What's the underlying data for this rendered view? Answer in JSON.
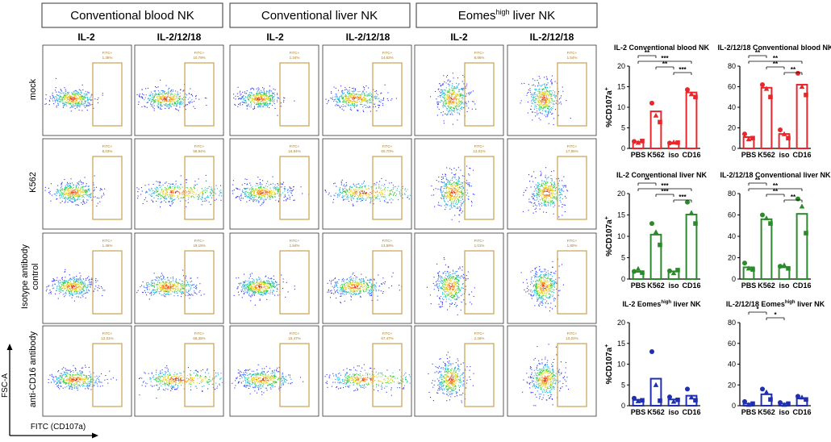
{
  "figure": {
    "column_groups": [
      {
        "label": "Conventional blood NK"
      },
      {
        "label": "Conventional liver NK"
      },
      {
        "label_main": "Eomes",
        "label_sup": "high",
        "label_tail": " liver NK"
      }
    ],
    "column_labels": [
      "IL-2",
      "IL-2/12/18",
      "IL-2",
      "IL-2/12/18",
      "IL-2",
      "IL-2/12/18"
    ],
    "row_labels": [
      [
        "mock"
      ],
      [
        "K562"
      ],
      [
        "Isotype antibody",
        "control"
      ],
      [
        "anti-CD16 antibody"
      ]
    ],
    "gate_name": "FITC+",
    "gate_percentages": [
      [
        "1,36%",
        "10,79%",
        "1,34%",
        "14,62%",
        "8,86%",
        "1,54%"
      ],
      [
        "8,03%",
        "58,94%",
        "16,94%",
        "60,70%",
        "13,01%",
        "17,85%"
      ],
      [
        "1,46%",
        "18,15%",
        "1,84%",
        "13,59%",
        "1,01%",
        "1,80%"
      ],
      [
        "12,01%",
        "68,35%",
        "15,47%",
        "67,47%",
        "2,26%",
        "10,02%"
      ]
    ],
    "y_axis_label": "FSC-A",
    "x_axis_label": "FITC (CD107a)"
  },
  "chart_data": [
    {
      "type": "bar",
      "title": "IL-2 Conventional blood NK",
      "color": "#e8262b",
      "categories": [
        "PBS",
        "K562",
        "iso",
        "CD16"
      ],
      "values": [
        1.6,
        9.0,
        1.4,
        13.6
      ],
      "points": [
        [
          1.7,
          1.4,
          1.8
        ],
        [
          11.0,
          8.0,
          6.4
        ],
        [
          1.3,
          1.5,
          1.4
        ],
        [
          14.3,
          13.2,
          12.5
        ]
      ],
      "ylabel": "%CD107a+",
      "ylim": [
        0,
        20
      ],
      "yticks": [
        0,
        5,
        10,
        15,
        20
      ],
      "significance": [
        {
          "from": "PBS",
          "to": "K562",
          "label": "**"
        },
        {
          "from": "PBS",
          "to": "CD16",
          "label": "***"
        },
        {
          "from": "K562",
          "to": "iso",
          "label": "**"
        },
        {
          "from": "iso",
          "to": "CD16",
          "label": "***"
        }
      ]
    },
    {
      "type": "bar",
      "title": "IL-2/12/18 Conventional blood NK",
      "color": "#e8262b",
      "categories": [
        "PBS",
        "K562",
        "iso",
        "CD16"
      ],
      "values": [
        11,
        59,
        14,
        62
      ],
      "points": [
        [
          14,
          9,
          10
        ],
        [
          62,
          58,
          50
        ],
        [
          18,
          14,
          10
        ],
        [
          73,
          60,
          52
        ]
      ],
      "ylabel": "",
      "ylim": [
        0,
        80
      ],
      "yticks": [
        0,
        20,
        40,
        60,
        80
      ],
      "significance": [
        {
          "from": "PBS",
          "to": "K562",
          "label": "**"
        },
        {
          "from": "PBS",
          "to": "CD16",
          "label": "**"
        },
        {
          "from": "K562",
          "to": "iso",
          "label": "**"
        },
        {
          "from": "iso",
          "to": "CD16",
          "label": "**"
        }
      ]
    },
    {
      "type": "bar",
      "title": "IL-2 Conventional liver NK",
      "color": "#2b8a2b",
      "categories": [
        "PBS",
        "K562",
        "iso",
        "CD16"
      ],
      "values": [
        1.7,
        10.4,
        1.8,
        15.1
      ],
      "points": [
        [
          1.8,
          2.4,
          1.5
        ],
        [
          13.0,
          11.0,
          8.0
        ],
        [
          1.9,
          1.4,
          2.1
        ],
        [
          18.0,
          15.5,
          13.0
        ]
      ],
      "ylabel": "%CD107a+",
      "ylim": [
        0,
        20
      ],
      "yticks": [
        0,
        5,
        10,
        15,
        20
      ],
      "significance": [
        {
          "from": "PBS",
          "to": "K562",
          "label": "**"
        },
        {
          "from": "PBS",
          "to": "CD16",
          "label": "***"
        },
        {
          "from": "K562",
          "to": "iso",
          "label": "***"
        },
        {
          "from": "iso",
          "to": "CD16",
          "label": "***"
        }
      ]
    },
    {
      "type": "bar",
      "title": "IL-2/12/18 Conventional liver NK",
      "color": "#2b8a2b",
      "categories": [
        "PBS",
        "K562",
        "iso",
        "CD16"
      ],
      "values": [
        11,
        56,
        11,
        61
      ],
      "points": [
        [
          15,
          10,
          9
        ],
        [
          60,
          57,
          52
        ],
        [
          12,
          13,
          10
        ],
        [
          75,
          68,
          43
        ]
      ],
      "ylabel": "",
      "ylim": [
        0,
        80
      ],
      "yticks": [
        0,
        20,
        40,
        60,
        80
      ],
      "significance": [
        {
          "from": "PBS",
          "to": "K562",
          "label": "**"
        },
        {
          "from": "PBS",
          "to": "CD16",
          "label": "**"
        },
        {
          "from": "K562",
          "to": "iso",
          "label": "**"
        },
        {
          "from": "iso",
          "to": "CD16",
          "label": "**"
        }
      ]
    },
    {
      "type": "bar",
      "title_main": "IL-2 Eomes",
      "title_sup": "high",
      "title_tail": " liver NK",
      "color": "#1f2fb0",
      "categories": [
        "PBS",
        "K562",
        "iso",
        "CD16"
      ],
      "values": [
        1.4,
        6.5,
        1.5,
        2.4
      ],
      "points": [
        [
          1.8,
          1.1,
          1.3
        ],
        [
          13.0,
          5.0,
          1.2
        ],
        [
          2.1,
          1.0,
          1.4
        ],
        [
          4.0,
          2.0,
          1.3
        ]
      ],
      "ylabel": "%CD107a+",
      "ylim": [
        0,
        20
      ],
      "yticks": [
        0,
        5,
        10,
        15,
        20
      ],
      "significance": []
    },
    {
      "type": "bar",
      "title_main": "IL-2/12/18 Eomes",
      "title_sup": "high",
      "title_tail": " liver NK",
      "color": "#1f2fb0",
      "categories": [
        "PBS",
        "K562",
        "iso",
        "CD16"
      ],
      "values": [
        2,
        11,
        2,
        7
      ],
      "points": [
        [
          4,
          1,
          2
        ],
        [
          16,
          13,
          6
        ],
        [
          3,
          1,
          2
        ],
        [
          9,
          8,
          6
        ]
      ],
      "ylabel": "",
      "ylim": [
        0,
        80
      ],
      "yticks": [
        0,
        20,
        40,
        60,
        80
      ],
      "significance": [
        {
          "from": "PBS",
          "to": "K562",
          "label": "*"
        },
        {
          "from": "K562",
          "to": "iso",
          "label": "*"
        }
      ]
    }
  ]
}
